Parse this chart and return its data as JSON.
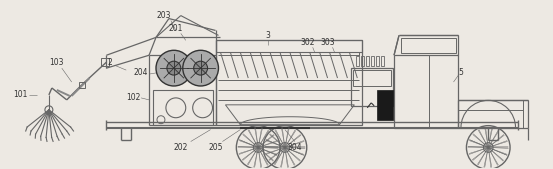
{
  "bg_color": "#ede9e3",
  "lc": "#666666",
  "dc": "#333333",
  "fig_width": 5.53,
  "fig_height": 1.69,
  "dpi": 100
}
